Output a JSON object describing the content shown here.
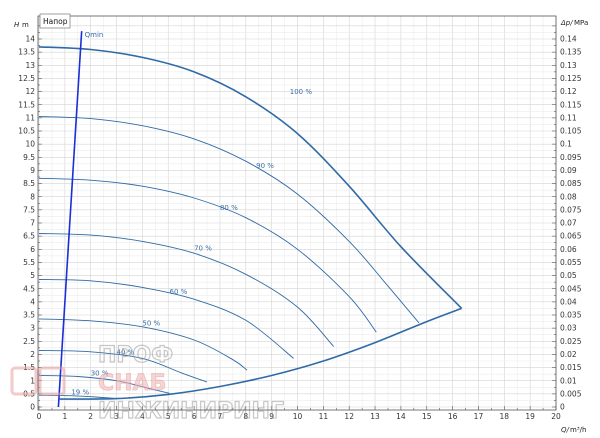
{
  "chart_data": {
    "type": "line",
    "legend": "Напор",
    "y_left_label": "H",
    "y_left_unit": "m",
    "y_right_label": "Δp/",
    "y_right_unit": "MPa",
    "x_label": "Q/",
    "x_unit": "m³/h",
    "xlim": [
      0,
      20
    ],
    "ylim": [
      0,
      14.5
    ],
    "y_right_lim": [
      0,
      0.145
    ],
    "x_ticks": [
      "0",
      "1",
      "2",
      "3",
      "4",
      "5",
      "6",
      "7",
      "8",
      "9",
      "10",
      "11",
      "12",
      "13",
      "14",
      "15",
      "16",
      "17",
      "18",
      "19",
      "20"
    ],
    "y_left_ticks": [
      "0",
      "0.5",
      "1",
      "1.5",
      "2",
      "2.5",
      "3",
      "3.5",
      "4",
      "4.5",
      "5",
      "5.5",
      "6",
      "6.5",
      "7",
      "7.5",
      "8",
      "8.5",
      "9",
      "9.5",
      "10",
      "10.5",
      "11",
      "11.5",
      "12",
      "12.5",
      "13",
      "13.5",
      "14"
    ],
    "y_right_ticks": [
      "0",
      "0.005",
      "0.01",
      "0.015",
      "0.02",
      "0.025",
      "0.03",
      "0.035",
      "0.04",
      "0.045",
      "0.05",
      "0.055",
      "0.06",
      "0.065",
      "0.07",
      "0.075",
      "0.08",
      "0.085",
      "0.09",
      "0.095",
      "0.1",
      "0.105",
      "0.11",
      "0.115",
      "0.12",
      "0.125",
      "0.13",
      "0.135",
      "0.14"
    ],
    "grid": true,
    "qmin_line": {
      "label": "Qmin",
      "x": [
        0.75,
        1.65
      ],
      "y": [
        0,
        14.3
      ]
    },
    "envelope": {
      "x": [
        0.8,
        3,
        5,
        7,
        9,
        11,
        13,
        15,
        16.35
      ],
      "y": [
        0.3,
        0.32,
        0.48,
        0.78,
        1.2,
        1.75,
        2.45,
        3.25,
        3.75
      ]
    },
    "series": [
      {
        "name": "100 %",
        "x": [
          0,
          2,
          4,
          6,
          8,
          10,
          12,
          14,
          16.35
        ],
        "y": [
          13.7,
          13.6,
          13.3,
          12.75,
          11.8,
          10.4,
          8.4,
          6.1,
          3.75
        ]
      },
      {
        "name": "90 %",
        "x": [
          0,
          2,
          4,
          6,
          8,
          10,
          12,
          13.5,
          14.7
        ],
        "y": [
          11.05,
          10.97,
          10.7,
          10.2,
          9.35,
          8.1,
          6.3,
          4.6,
          3.2
        ]
      },
      {
        "name": "80 %",
        "x": [
          0,
          2,
          4,
          6,
          8,
          10,
          12,
          13.05
        ],
        "y": [
          8.7,
          8.63,
          8.4,
          7.95,
          7.2,
          6.0,
          4.2,
          2.85
        ]
      },
      {
        "name": "70 %",
        "x": [
          0,
          2,
          4,
          6,
          8,
          10,
          11.4
        ],
        "y": [
          6.6,
          6.54,
          6.3,
          5.85,
          5.05,
          3.8,
          2.3
        ]
      },
      {
        "name": "60 %",
        "x": [
          0,
          2,
          4,
          6,
          8,
          9.85
        ],
        "y": [
          4.85,
          4.8,
          4.55,
          4.1,
          3.3,
          1.85
        ]
      },
      {
        "name": "50 %",
        "x": [
          0,
          2,
          4,
          6,
          7.5,
          8.05
        ],
        "y": [
          3.35,
          3.28,
          3.05,
          2.55,
          1.8,
          1.4
        ]
      },
      {
        "name": "40 %",
        "x": [
          0,
          2,
          4,
          5.5,
          6.5
        ],
        "y": [
          2.15,
          2.1,
          1.85,
          1.3,
          0.95
        ]
      },
      {
        "name": "30 %",
        "x": [
          0,
          1.5,
          3,
          4.2,
          5.05
        ],
        "y": [
          1.2,
          1.16,
          1.0,
          0.72,
          0.52
        ]
      },
      {
        "name": "19 %",
        "x": [
          0,
          1.2,
          2.2,
          3.0
        ],
        "y": [
          0.45,
          0.43,
          0.38,
          0.32
        ]
      }
    ]
  },
  "watermark": {
    "line1": "ПРОФ",
    "line2": "СНАБ",
    "line3": "ИНЖИНИРИНГ"
  }
}
